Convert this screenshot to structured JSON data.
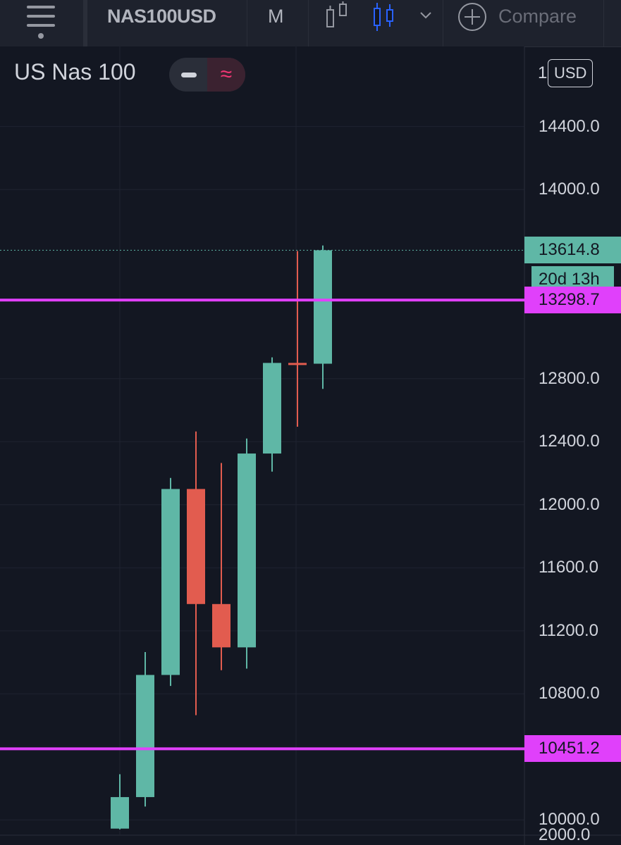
{
  "toolbar": {
    "menu_icon": "hamburger-menu-icon",
    "symbol": "NAS100USD",
    "interval": "M",
    "compare_label": "Compare",
    "icons": [
      "bar-style-icon",
      "candles-style-icon",
      "chevron-down-icon",
      "plus-circle-icon"
    ]
  },
  "legend": {
    "title": "US Nas 100",
    "pill_icons": [
      "minus-icon",
      "wave-indicator-icon"
    ]
  },
  "axis": {
    "currency": "USD",
    "top_partial_label": "1",
    "bottom_partial_label": "2000.0"
  },
  "colors": {
    "background": "#131722",
    "up": "#5fb7a6",
    "down": "#e25c4f",
    "level": "#e040fb",
    "grid": "#1f2330"
  },
  "chart_data": {
    "type": "candlestick",
    "title": "US Nas 100",
    "ylim": [
      9975,
      14975
    ],
    "y_ticks": [
      10000,
      10800,
      11200,
      11600,
      12000,
      12400,
      12800,
      14000,
      14400
    ],
    "y_tick_labels": [
      "10000.0",
      "10800.0",
      "11200.0",
      "11600.0",
      "12000.0",
      "12400.0",
      "12800.0",
      "14000.0",
      "14400.0"
    ],
    "candles": [
      {
        "open": 9945,
        "high": 10290,
        "low": 9940,
        "close": 10145
      },
      {
        "open": 10145,
        "high": 11065,
        "low": 10085,
        "close": 10920
      },
      {
        "open": 10920,
        "high": 12170,
        "low": 10850,
        "close": 12100
      },
      {
        "open": 12100,
        "high": 12465,
        "low": 10665,
        "close": 11370
      },
      {
        "open": 11370,
        "high": 12265,
        "low": 10950,
        "close": 11095
      },
      {
        "open": 11095,
        "high": 12420,
        "low": 10960,
        "close": 12325
      },
      {
        "open": 12325,
        "high": 12935,
        "low": 12210,
        "close": 12900
      },
      {
        "open": 12900,
        "high": 13610,
        "low": 12495,
        "close": 12895
      },
      {
        "open": 12895,
        "high": 13645,
        "low": 12735,
        "close": 13614.8
      }
    ],
    "horizontal_levels": [
      {
        "value": 13298.7,
        "label": "13298.7"
      },
      {
        "value": 10451.2,
        "label": "10451.2"
      }
    ],
    "last_price": {
      "value": 13614.8,
      "label": "13614.8",
      "countdown": "20d 13h"
    }
  }
}
